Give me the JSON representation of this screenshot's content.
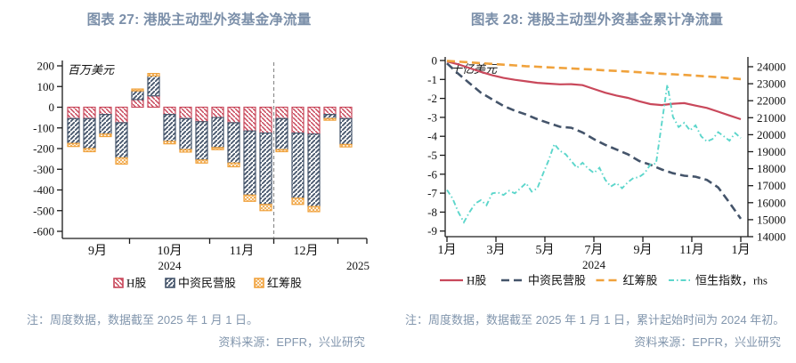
{
  "panels": {
    "left": {
      "title": "图表 27: 港股主动型外资基金净流量",
      "note": "注：周度数据，数据截至 2025 年 1 月 1 日。",
      "source": "资料来源：EPFR，兴业研究"
    },
    "right": {
      "title": "图表 28: 港股主动型外资基金累计净流量",
      "note": "注：周度数据，数据截至 2025 年 1 月 1 日，累计起始时间为 2024 年初。",
      "source": "资料来源：EPFR，兴业研究"
    }
  },
  "colors": {
    "title_blue": "#7b8fa9",
    "h_share_red": "#c9485b",
    "private_navy": "#44546a",
    "red_chip_orange": "#f0a23c",
    "hsi_cyan": "#5cd6cb",
    "axis_black": "#1a1a1a",
    "separator_gray": "#8c8c8c"
  },
  "chart_data": [
    {
      "type": "bar",
      "stacked": true,
      "title": "图表 27: 港股主动型外资基金净流量",
      "unit_label": "百万美元",
      "ylim": [
        -600,
        200
      ],
      "yticks": [
        200,
        100,
        0,
        -100,
        -200,
        -300,
        -400,
        -500,
        -600
      ],
      "x_axis": {
        "month_labels": [
          "9月",
          "10月",
          "11月",
          "12月"
        ],
        "bars_per_month": [
          4,
          5,
          4,
          4,
          1
        ],
        "year_left": "2024",
        "year_right": "2025",
        "separator_after_bar": 13
      },
      "legend": [
        "H股",
        "中资民营股",
        "红筹股"
      ],
      "series": [
        {
          "name": "H股",
          "color": "#c9485b",
          "values": [
            -55,
            -55,
            -35,
            -75,
            37,
            55,
            -35,
            -55,
            -70,
            -50,
            -75,
            -115,
            -125,
            -55,
            -125,
            -130,
            -35,
            -55
          ]
        },
        {
          "name": "中资民营股",
          "color": "#44546a",
          "values": [
            -120,
            -145,
            -95,
            -170,
            42,
            96,
            -130,
            -150,
            -185,
            -145,
            -195,
            -310,
            -345,
            -150,
            -315,
            -350,
            -20,
            -125
          ]
        },
        {
          "name": "红筹股",
          "color": "#f0a23c",
          "values": [
            -15,
            -15,
            -12,
            -30,
            9,
            12,
            -12,
            -12,
            -15,
            -10,
            -18,
            -30,
            -30,
            -10,
            -30,
            -25,
            -8,
            -12
          ]
        }
      ]
    },
    {
      "type": "line",
      "title": "图表 28: 港股主动型外资基金累计净流量",
      "unit_label": "十亿美元",
      "ylim_left": [
        -9,
        0
      ],
      "yticks_left": [
        0,
        -1,
        -2,
        -3,
        -4,
        -5,
        -6,
        -7,
        -8,
        -9
      ],
      "ylim_right": [
        14000,
        24000
      ],
      "yticks_right": [
        24000,
        23000,
        22000,
        21000,
        20000,
        19000,
        18000,
        17000,
        16000,
        15000,
        14000
      ],
      "x_axis": {
        "tick_labels": [
          "1月",
          "3月",
          "5月",
          "7月",
          "9月",
          "11月",
          "1月"
        ],
        "tick_weeks": [
          0,
          8.67,
          17.33,
          26,
          34.67,
          43.33,
          52
        ],
        "year_label": "2024",
        "weeks_total": 52
      },
      "legend": [
        "H股",
        "中资民营股",
        "红筹股",
        "恒生指数，rhs"
      ],
      "series": [
        {
          "name": "H股",
          "axis": "left",
          "style": "solid",
          "color": "#c9485b",
          "x": [
            0,
            2,
            4,
            6,
            8,
            10,
            12,
            14,
            16,
            18,
            20,
            22,
            24,
            26,
            28,
            30,
            32,
            34,
            36,
            38,
            40,
            42,
            44,
            46,
            48,
            50,
            52
          ],
          "values": [
            -0.05,
            -0.2,
            -0.4,
            -0.6,
            -0.78,
            -0.92,
            -1.02,
            -1.1,
            -1.18,
            -1.22,
            -1.26,
            -1.25,
            -1.3,
            -1.5,
            -1.7,
            -1.85,
            -1.97,
            -2.15,
            -2.3,
            -2.35,
            -2.28,
            -2.25,
            -2.38,
            -2.5,
            -2.7,
            -2.9,
            -3.1
          ]
        },
        {
          "name": "中资民营股",
          "axis": "left",
          "style": "dashed",
          "color": "#44546a",
          "x": [
            0,
            2,
            4,
            6,
            8,
            10,
            12,
            14,
            16,
            18,
            20,
            22,
            24,
            26,
            28,
            30,
            32,
            34,
            36,
            38,
            40,
            42,
            44,
            46,
            48,
            50,
            52
          ],
          "values": [
            -0.15,
            -0.7,
            -1.2,
            -1.7,
            -2.05,
            -2.4,
            -2.65,
            -2.85,
            -3.1,
            -3.3,
            -3.5,
            -3.55,
            -3.8,
            -4.15,
            -4.45,
            -4.7,
            -4.95,
            -5.3,
            -5.5,
            -5.75,
            -5.95,
            -6.08,
            -6.13,
            -6.3,
            -6.7,
            -7.5,
            -8.35
          ]
        },
        {
          "name": "红筹股",
          "axis": "left",
          "style": "dashed",
          "color": "#f0a23c",
          "x": [
            0,
            2,
            4,
            6,
            8,
            10,
            12,
            14,
            16,
            18,
            20,
            22,
            24,
            26,
            28,
            30,
            32,
            34,
            36,
            38,
            40,
            42,
            44,
            46,
            48,
            50,
            52
          ],
          "values": [
            -0.02,
            -0.06,
            -0.1,
            -0.14,
            -0.18,
            -0.22,
            -0.26,
            -0.3,
            -0.33,
            -0.36,
            -0.39,
            -0.42,
            -0.45,
            -0.48,
            -0.52,
            -0.55,
            -0.58,
            -0.62,
            -0.66,
            -0.7,
            -0.73,
            -0.76,
            -0.8,
            -0.84,
            -0.88,
            -0.93,
            -0.98
          ]
        },
        {
          "name": "恒生指数，rhs",
          "axis": "right",
          "style": "dashdot",
          "color": "#5cd6cb",
          "x": [
            0,
            1,
            2,
            3,
            4,
            5,
            6,
            7,
            8,
            9,
            10,
            11,
            12,
            13,
            14,
            15,
            16,
            17,
            18,
            19,
            20,
            21,
            22,
            23,
            24,
            25,
            26,
            27,
            28,
            29,
            30,
            31,
            32,
            33,
            34,
            35,
            36,
            37,
            38,
            39,
            40,
            41,
            42,
            43,
            44,
            45,
            46,
            47,
            48,
            49,
            50,
            51,
            52
          ],
          "values": [
            16750,
            16250,
            15450,
            14850,
            15450,
            15950,
            16150,
            15850,
            16550,
            16600,
            16450,
            16700,
            16550,
            16850,
            17150,
            16650,
            16850,
            17700,
            18500,
            19450,
            19050,
            18850,
            18450,
            18050,
            18350,
            18000,
            17750,
            18050,
            17350,
            16950,
            17150,
            16850,
            17200,
            17450,
            17500,
            17750,
            18250,
            18300,
            20650,
            22950,
            21050,
            20450,
            20700,
            20250,
            20550,
            19900,
            19600,
            19750,
            20150,
            19900,
            19650,
            20100,
            19800
          ]
        }
      ]
    }
  ]
}
